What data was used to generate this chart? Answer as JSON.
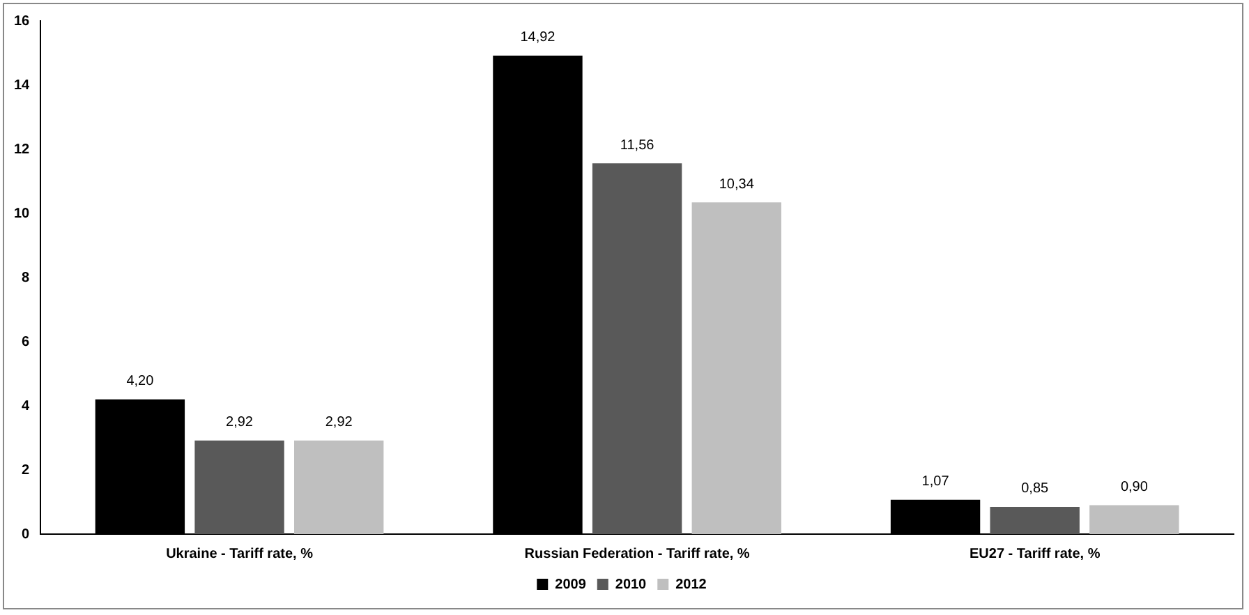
{
  "chart_data": {
    "type": "bar",
    "categories": [
      "Ukraine - Tariff rate, %",
      "Russian Federation - Tariff rate, %",
      "EU27 - Tariff rate, %"
    ],
    "series": [
      {
        "name": "2009",
        "color": "#000000",
        "values": [
          4.2,
          14.92,
          1.07
        ],
        "value_labels": [
          "4,20",
          "14,92",
          "1,07"
        ]
      },
      {
        "name": "2010",
        "color": "#595959",
        "values": [
          2.92,
          11.56,
          0.85
        ],
        "value_labels": [
          "2,92",
          "11,56",
          "0,85"
        ]
      },
      {
        "name": "2012",
        "color": "#bfbfbf",
        "values": [
          2.92,
          10.34,
          0.9
        ],
        "value_labels": [
          "2,92",
          "10,34",
          "0,90"
        ]
      }
    ],
    "ylim": [
      0,
      16
    ],
    "yticks": [
      0,
      2,
      4,
      6,
      8,
      10,
      12,
      14,
      16
    ],
    "grid": false,
    "legend": "bottom"
  }
}
